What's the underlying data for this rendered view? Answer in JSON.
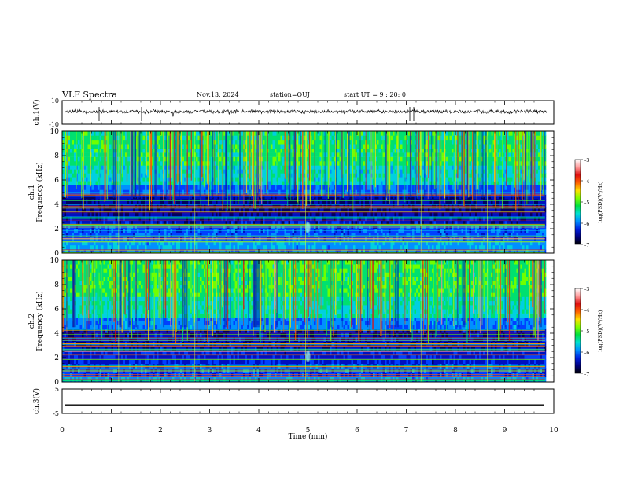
{
  "header": {
    "title": "VLF Spectra",
    "date": "Nov.13, 2024",
    "station": "station=OUJ",
    "start_ut": "start UT = 9 : 20: 0"
  },
  "colorbar": {
    "label": "log(PSD)(V²/Hz)",
    "ticks": [
      -3,
      -4,
      -5,
      -6,
      -7
    ],
    "colors": [
      "#ffffff",
      "#ff9a9a",
      "#e01010",
      "#ff6000",
      "#ffe000",
      "#80ff00",
      "#00e040",
      "#00e0d0",
      "#0090ff",
      "#0020e0",
      "#000080",
      "#000000"
    ]
  },
  "chart_data": [
    {
      "type": "line",
      "ylabel": "ch.1(V)",
      "ylim": [
        -10,
        10
      ],
      "yticks": [
        "10",
        "-10"
      ],
      "x": [
        0,
        10
      ],
      "values": [
        0,
        0
      ],
      "description_of_signal": ""
    },
    {
      "type": "heatmap",
      "ylabel": "ch.1 Frequency (kHz)",
      "ylim": [
        0,
        10
      ],
      "yticks": [
        0,
        2,
        4,
        6,
        8,
        10
      ],
      "xlim": [
        0,
        10
      ],
      "z_range": [
        -7,
        -3
      ],
      "z_label": "log(PSD)(V²/Hz)"
    },
    {
      "type": "heatmap",
      "ylabel": "ch.2 Frequency (kHz)",
      "ylim": [
        0,
        10
      ],
      "yticks": [
        0,
        2,
        4,
        6,
        8,
        10
      ],
      "xlim": [
        0,
        10
      ],
      "z_range": [
        -7,
        -3
      ],
      "z_label": "log(PSD)(V²/Hz)"
    },
    {
      "type": "line",
      "ylabel": "ch.3(V)",
      "ylim": [
        -5,
        5
      ],
      "yticks": [
        "5",
        "-5"
      ],
      "x": [
        0,
        9.8
      ],
      "values": [
        -1.5,
        -1.5
      ],
      "xlabel": "Time (min)",
      "xticks": [
        0,
        1,
        2,
        3,
        4,
        5,
        6,
        7,
        8,
        9,
        10
      ]
    }
  ]
}
